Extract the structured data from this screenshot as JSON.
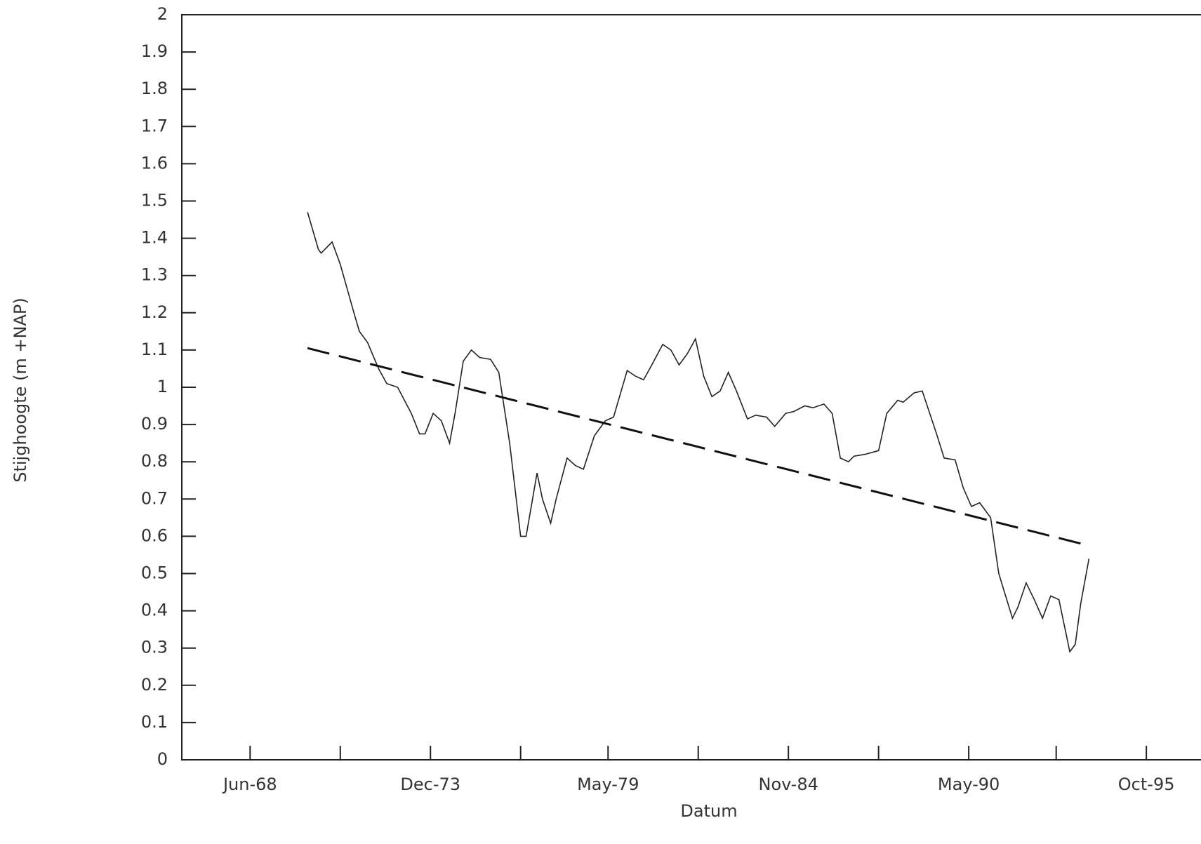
{
  "chart_data": {
    "type": "line",
    "xlabel": "Datum",
    "ylabel": "Stijghoogte (m  +NAP)",
    "xlim": [
      "1966-05",
      "1997-06"
    ],
    "xticks": [
      {
        "value": "1968-06",
        "label": "Jun-68"
      },
      {
        "value": "1973-12",
        "label": "Dec-73"
      },
      {
        "value": "1979-05",
        "label": "May-79"
      },
      {
        "value": "1984-11",
        "label": "Nov-84"
      },
      {
        "value": "1990-05",
        "label": "May-90"
      },
      {
        "value": "1995-10",
        "label": "Oct-95"
      }
    ],
    "xminorticks": [
      "1971-03",
      "1976-09",
      "1982-02",
      "1987-08",
      "1993-01"
    ],
    "ylim": [
      0,
      2
    ],
    "yticks": [
      0,
      0.1,
      0.2,
      0.3,
      0.4,
      0.5,
      0.6,
      0.7,
      0.8,
      0.9,
      1,
      1.1,
      1.2,
      1.3,
      1.4,
      1.5,
      1.6,
      1.7,
      1.8,
      1.9,
      2
    ],
    "series": [
      {
        "color": "#222222",
        "dash": false,
        "x": [
          "1970-03",
          "1970-07",
          "1970-08",
          "1970-12",
          "1971-03",
          "1971-08",
          "1971-10",
          "1972-01",
          "1972-05",
          "1972-08",
          "1972-12",
          "1973-05",
          "1973-08",
          "1973-10",
          "1974-01",
          "1974-04",
          "1974-07",
          "1974-09",
          "1974-12",
          "1975-03",
          "1975-06",
          "1975-10",
          "1976-01",
          "1976-05",
          "1976-09",
          "1976-11",
          "1977-03",
          "1977-05",
          "1977-08",
          "1977-10",
          "1978-02",
          "1978-05",
          "1978-08",
          "1978-12",
          "1979-04",
          "1979-07",
          "1979-12",
          "1980-03",
          "1980-06",
          "1980-09",
          "1981-01",
          "1981-04",
          "1981-07",
          "1981-10",
          "1982-01",
          "1982-04",
          "1982-07",
          "1982-10",
          "1983-01",
          "1983-04",
          "1983-08",
          "1983-11",
          "1984-03",
          "1984-06",
          "1984-10",
          "1985-01",
          "1985-05",
          "1985-08",
          "1985-12",
          "1986-03",
          "1986-06",
          "1986-09",
          "1986-11",
          "1987-03",
          "1987-08",
          "1987-11",
          "1988-03",
          "1988-05",
          "1988-09",
          "1988-12",
          "1989-05",
          "1989-08",
          "1989-12",
          "1990-03",
          "1990-06",
          "1990-09",
          "1991-01",
          "1991-04",
          "1991-09",
          "1991-11",
          "1992-02",
          "1992-05",
          "1992-08",
          "1992-11",
          "1993-02",
          "1993-06",
          "1993-08",
          "1993-10",
          "1994-01"
        ],
        "values": [
          1.47,
          1.37,
          1.36,
          1.39,
          1.33,
          1.2,
          1.15,
          1.12,
          1.05,
          1.01,
          1.0,
          0.93,
          0.875,
          0.875,
          0.93,
          0.91,
          0.85,
          0.93,
          1.07,
          1.1,
          1.08,
          1.075,
          1.04,
          0.85,
          0.6,
          0.6,
          0.77,
          0.7,
          0.635,
          0.7,
          0.81,
          0.79,
          0.78,
          0.87,
          0.91,
          0.92,
          1.045,
          1.03,
          1.02,
          1.06,
          1.115,
          1.1,
          1.06,
          1.09,
          1.13,
          1.03,
          0.975,
          0.99,
          1.04,
          0.99,
          0.915,
          0.925,
          0.92,
          0.895,
          0.93,
          0.935,
          0.95,
          0.945,
          0.955,
          0.93,
          0.81,
          0.8,
          0.815,
          0.82,
          0.83,
          0.93,
          0.965,
          0.96,
          0.985,
          0.99,
          0.88,
          0.81,
          0.805,
          0.73,
          0.68,
          0.69,
          0.65,
          0.5,
          0.38,
          0.41,
          0.475,
          0.43,
          0.38,
          0.44,
          0.43,
          0.29,
          0.31,
          0.42,
          0.54
        ]
      },
      {
        "color": "#111111",
        "dash": true,
        "x": [
          "1970-03",
          "1994-01"
        ],
        "values": [
          1.105,
          0.575
        ]
      }
    ]
  }
}
